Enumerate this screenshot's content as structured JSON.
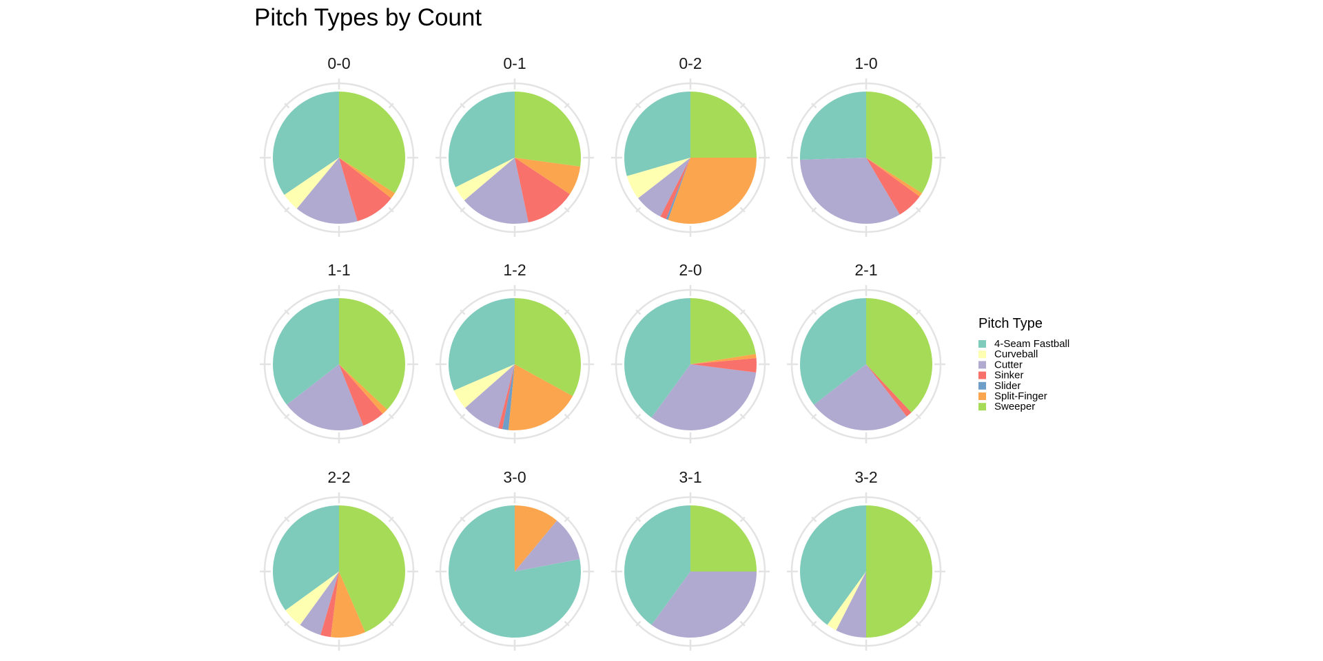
{
  "chart_data": {
    "type": "pie",
    "title": "Pitch Types by Count",
    "legend": {
      "title": "Pitch Type",
      "placement": "right"
    },
    "pitch_types": [
      {
        "name": "4-Seam Fastball",
        "color": "#7FCBBB"
      },
      {
        "name": "Curveball",
        "color": "#FFFFB2"
      },
      {
        "name": "Cutter",
        "color": "#B0AAD0"
      },
      {
        "name": "Sinker",
        "color": "#F8716B"
      },
      {
        "name": "Slider",
        "color": "#6F9FC8"
      },
      {
        "name": "Split-Finger",
        "color": "#FBA54F"
      },
      {
        "name": "Sweeper",
        "color": "#A6DB57"
      }
    ],
    "series": [
      {
        "name": "0-0",
        "values": [
          34.5,
          4.5,
          15.5,
          10.0,
          0,
          1.5,
          34.0
        ]
      },
      {
        "name": "0-1",
        "values": [
          34.0,
          4.0,
          18.0,
          13.0,
          0,
          7.5,
          28.5
        ]
      },
      {
        "name": "0-2",
        "values": [
          29.5,
          6.0,
          7.0,
          1.5,
          0.5,
          30.5,
          25.0
        ]
      },
      {
        "name": "1-0",
        "values": [
          25.5,
          0,
          33.0,
          6.5,
          0,
          1.0,
          34.0
        ]
      },
      {
        "name": "1-1",
        "values": [
          35.5,
          0,
          20.5,
          5.5,
          0,
          1.5,
          37.0
        ]
      },
      {
        "name": "1-2",
        "values": [
          31.5,
          5.0,
          9.5,
          1.0,
          1.5,
          18.5,
          33.0
        ]
      },
      {
        "name": "2-0",
        "values": [
          40.0,
          0,
          33.0,
          3.5,
          0,
          1.0,
          22.5
        ]
      },
      {
        "name": "2-1",
        "values": [
          35.5,
          0,
          25.0,
          1.5,
          0,
          0,
          38.0
        ]
      },
      {
        "name": "2-2",
        "values": [
          35.0,
          5.0,
          5.5,
          2.5,
          0,
          8.5,
          43.5
        ]
      },
      {
        "name": "3-0",
        "values": [
          78.0,
          0,
          11.0,
          0,
          0,
          11.0,
          0
        ]
      },
      {
        "name": "3-1",
        "values": [
          40.0,
          0,
          35.0,
          0,
          0,
          0,
          25.0
        ]
      },
      {
        "name": "3-2",
        "values": [
          40.0,
          2.5,
          7.5,
          0,
          0,
          0,
          50.0
        ]
      }
    ]
  }
}
